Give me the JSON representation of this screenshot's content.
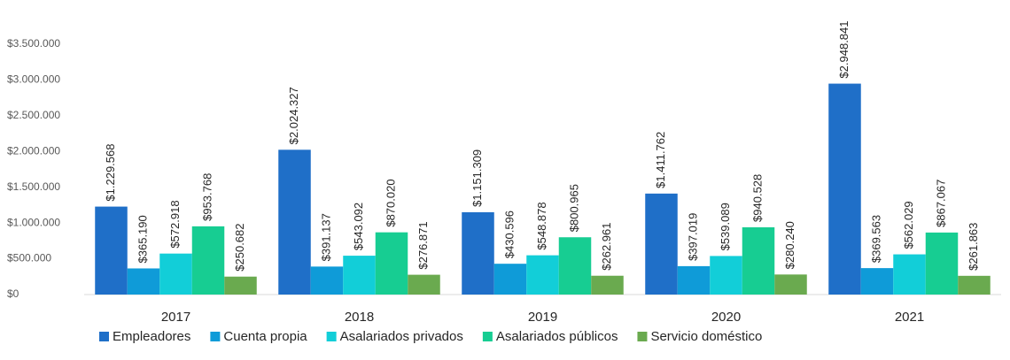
{
  "chart_data": {
    "type": "bar",
    "categories": [
      "2017",
      "2018",
      "2019",
      "2020",
      "2021"
    ],
    "series": [
      {
        "name": "Empleadores",
        "color": "#1f6fc8",
        "values": [
          1229568,
          2024327,
          1151309,
          1411762,
          2948841
        ],
        "value_labels": [
          "$1.229.568",
          "$2.024.327",
          "$1.151.309",
          "$1.411.762",
          "$2.948.841"
        ]
      },
      {
        "name": "Cuenta propia",
        "color": "#0f9bd8",
        "values": [
          365190,
          391137,
          430596,
          397019,
          369563
        ],
        "value_labels": [
          "$365.190",
          "$391.137",
          "$430.596",
          "$397.019",
          "$369.563"
        ]
      },
      {
        "name": "Asalariados privados",
        "color": "#12ced8",
        "values": [
          572918,
          543092,
          548878,
          539089,
          562029
        ],
        "value_labels": [
          "$572.918",
          "$543.092",
          "$548.878",
          "$539.089",
          "$562.029"
        ]
      },
      {
        "name": "Asalariados públicos",
        "color": "#17cd92",
        "values": [
          953768,
          870020,
          800965,
          940528,
          867067
        ],
        "value_labels": [
          "$953.768",
          "$870.020",
          "$800.965",
          "$940.528",
          "$867.067"
        ]
      },
      {
        "name": "Servicio doméstico",
        "color": "#6aaa4f",
        "values": [
          250682,
          276871,
          262961,
          280240,
          261863
        ],
        "value_labels": [
          "$250.682",
          "$276.871",
          "$262.961",
          "$280.240",
          "$261.863"
        ]
      }
    ],
    "ylim": [
      0,
      3500000
    ],
    "yticks": [
      {
        "value": 0,
        "label": "$0"
      },
      {
        "value": 500000,
        "label": "$500.000"
      },
      {
        "value": 1000000,
        "label": "$1.000.000"
      },
      {
        "value": 1500000,
        "label": "$1.500.000"
      },
      {
        "value": 2000000,
        "label": "$2.000.000"
      },
      {
        "value": 2500000,
        "label": "$2.500.000"
      },
      {
        "value": 3000000,
        "label": "$3.000.000"
      },
      {
        "value": 3500000,
        "label": "$3.500.000"
      }
    ],
    "legend": "bottom"
  }
}
